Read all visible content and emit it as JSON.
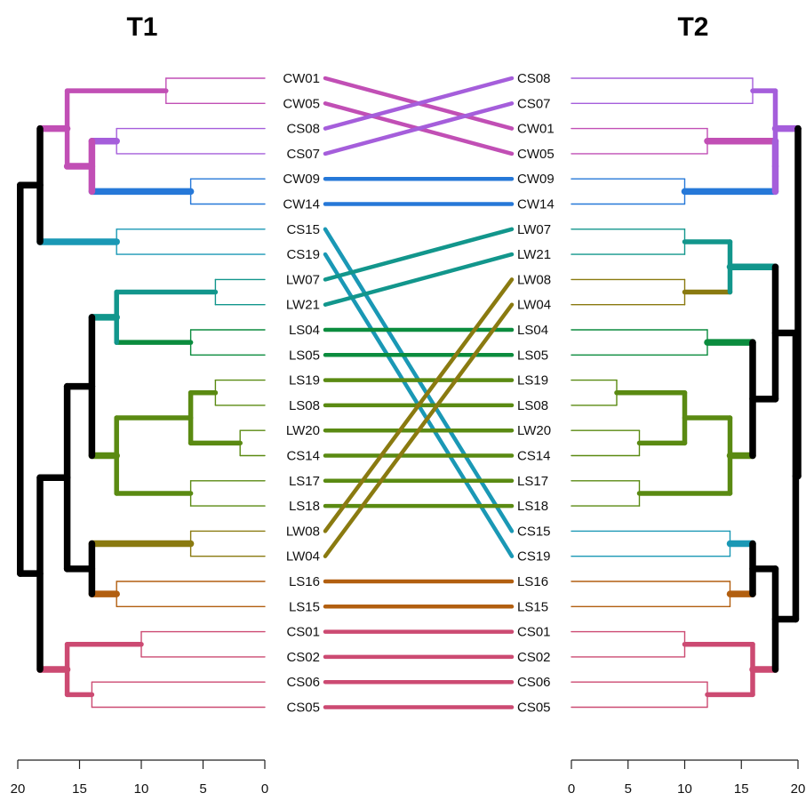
{
  "chart_data": {
    "type": "tanglegram",
    "titles": {
      "left": "T1",
      "right": "T2"
    },
    "axis": {
      "left": {
        "ticks": [
          20,
          15,
          10,
          5,
          0
        ],
        "range": [
          20,
          0
        ]
      },
      "right": {
        "ticks": [
          0,
          5,
          10,
          15,
          20
        ],
        "range": [
          0,
          20
        ]
      }
    },
    "left_leaves": [
      "CW01",
      "CW05",
      "CS08",
      "CS07",
      "CW09",
      "CW14",
      "CS15",
      "CS19",
      "LW07",
      "LW21",
      "LS04",
      "LS05",
      "LS19",
      "LS08",
      "LW20",
      "CS14",
      "LS17",
      "LS18",
      "LW08",
      "LW04",
      "LS16",
      "LS15",
      "CS01",
      "CS02",
      "CS06",
      "CS05"
    ],
    "right_leaves": [
      "CS08",
      "CS07",
      "CW01",
      "CW05",
      "CW09",
      "CW14",
      "LW07",
      "LW21",
      "LW08",
      "LW04",
      "LS04",
      "LS05",
      "LS19",
      "LS08",
      "LW20",
      "CS14",
      "LS17",
      "LS18",
      "CS15",
      "CS19",
      "LS16",
      "LS15",
      "CS01",
      "CS02",
      "CS06",
      "CS05"
    ],
    "connection_colors": {
      "CW01": "#C14FB5",
      "CW05": "#C14FB5",
      "CS08": "#A55EDB",
      "CS07": "#A55EDB",
      "CW09": "#2678D8",
      "CW14": "#2678D8",
      "CS15": "#1A98B5",
      "CS19": "#1A98B5",
      "LW07": "#12968C",
      "LW21": "#12968C",
      "LS04": "#0B8C3E",
      "LS05": "#0B8C3E",
      "LS19": "#5A8A12",
      "LS08": "#5A8A12",
      "LW20": "#5A8A12",
      "CS14": "#5A8A12",
      "LS17": "#5A8A12",
      "LS18": "#5A8A12",
      "LW08": "#8A7A10",
      "LW04": "#8A7A10",
      "LS16": "#B25F10",
      "LS15": "#B25F10",
      "CS01": "#CC4A72",
      "CS02": "#CC4A72",
      "CS06": "#CC4A72",
      "CS05": "#CC4A72"
    },
    "trees": {
      "left": {
        "h": 19.8,
        "children": [
          {
            "h": 18.2,
            "children": [
              {
                "h": 16,
                "color": "#C14FB5",
                "children": [
                  {
                    "h": 8,
                    "color": "#C14FB5",
                    "children": [
                      {
                        "leaf": "CW01"
                      },
                      {
                        "leaf": "CW05"
                      }
                    ]
                  },
                  {
                    "h": 14,
                    "children": [
                      {
                        "h": 12,
                        "color": "#A55EDB",
                        "children": [
                          {
                            "leaf": "CS08"
                          },
                          {
                            "leaf": "CS07"
                          }
                        ]
                      },
                      {
                        "h": 6,
                        "color": "#2678D8",
                        "children": [
                          {
                            "leaf": "CW09"
                          },
                          {
                            "leaf": "CW14"
                          }
                        ]
                      }
                    ]
                  }
                ]
              },
              {
                "h": 12,
                "color": "#1A98B5",
                "children": [
                  {
                    "leaf": "CS15"
                  },
                  {
                    "leaf": "CS19"
                  }
                ]
              }
            ]
          },
          {
            "h": 18.2,
            "children": [
              {
                "h": 16,
                "children": [
                  {
                    "h": 14,
                    "children": [
                      {
                        "h": 12,
                        "color": "#12968C",
                        "children": [
                          {
                            "h": 4,
                            "color": "#12968C",
                            "children": [
                              {
                                "leaf": "LW07"
                              },
                              {
                                "leaf": "LW21"
                              }
                            ]
                          },
                          {
                            "h": 6,
                            "color": "#0B8C3E",
                            "children": [
                              {
                                "leaf": "LS04"
                              },
                              {
                                "leaf": "LS05"
                              }
                            ]
                          }
                        ]
                      },
                      {
                        "h": 12,
                        "color": "#5A8A12",
                        "children": [
                          {
                            "h": 6,
                            "color": "#5A8A12",
                            "children": [
                              {
                                "h": 4,
                                "color": "#5A8A12",
                                "children": [
                                  {
                                    "leaf": "LS19"
                                  },
                                  {
                                    "leaf": "LS08"
                                  }
                                ]
                              },
                              {
                                "h": 2,
                                "color": "#5A8A12",
                                "children": [
                                  {
                                    "leaf": "LW20"
                                  },
                                  {
                                    "leaf": "CS14"
                                  }
                                ]
                              }
                            ]
                          },
                          {
                            "h": 6,
                            "color": "#5A8A12",
                            "children": [
                              {
                                "leaf": "LS17"
                              },
                              {
                                "leaf": "LS18"
                              }
                            ]
                          }
                        ]
                      }
                    ]
                  },
                  {
                    "h": 14,
                    "children": [
                      {
                        "h": 6,
                        "color": "#8A7A10",
                        "children": [
                          {
                            "leaf": "LW08"
                          },
                          {
                            "leaf": "LW04"
                          }
                        ]
                      },
                      {
                        "h": 12,
                        "color": "#B25F10",
                        "children": [
                          {
                            "leaf": "LS16"
                          },
                          {
                            "leaf": "LS15"
                          }
                        ]
                      }
                    ]
                  }
                ]
              },
              {
                "h": 16,
                "color": "#CC4A72",
                "children": [
                  {
                    "h": 10,
                    "color": "#CC4A72",
                    "children": [
                      {
                        "leaf": "CS01"
                      },
                      {
                        "leaf": "CS02"
                      }
                    ]
                  },
                  {
                    "h": 14,
                    "color": "#CC4A72",
                    "children": [
                      {
                        "leaf": "CS06"
                      },
                      {
                        "leaf": "CS05"
                      }
                    ]
                  }
                ]
              }
            ]
          }
        ]
      },
      "right": {
        "h": 20,
        "children": [
          {
            "h": 20,
            "children": [
              {
                "h": 18,
                "color": "#A55EDB",
                "children": [
                  {
                    "h": 16,
                    "color": "#A55EDB",
                    "children": [
                      {
                        "leaf": "CS08"
                      },
                      {
                        "leaf": "CS07"
                      }
                    ]
                  },
                  {
                    "h": 18,
                    "children": [
                      {
                        "h": 12,
                        "color": "#C14FB5",
                        "children": [
                          {
                            "leaf": "CW01"
                          },
                          {
                            "leaf": "CW05"
                          }
                        ]
                      },
                      {
                        "h": 10,
                        "color": "#2678D8",
                        "children": [
                          {
                            "leaf": "CW09"
                          },
                          {
                            "leaf": "CW14"
                          }
                        ]
                      }
                    ]
                  }
                ]
              }
            ]
          },
          {
            "h": 19.8,
            "children": [
              {
                "h": 18,
                "children": [
                  {
                    "h": 14,
                    "color": "#12968C",
                    "children": [
                      {
                        "h": 10,
                        "color": "#12968C",
                        "children": [
                          {
                            "leaf": "LW07"
                          },
                          {
                            "leaf": "LW21"
                          }
                        ]
                      },
                      {
                        "h": 10,
                        "color": "#8A7A10",
                        "children": [
                          {
                            "leaf": "LW08"
                          },
                          {
                            "leaf": "LW04"
                          }
                        ]
                      }
                    ]
                  },
                  {
                    "h": 16,
                    "children": [
                      {
                        "h": 12,
                        "color": "#0B8C3E",
                        "children": [
                          {
                            "leaf": "LS04"
                          },
                          {
                            "leaf": "LS05"
                          }
                        ]
                      },
                      {
                        "h": 14,
                        "color": "#5A8A12",
                        "children": [
                          {
                            "h": 10,
                            "color": "#5A8A12",
                            "children": [
                              {
                                "h": 4,
                                "color": "#5A8A12",
                                "children": [
                                  {
                                    "leaf": "LS19"
                                  },
                                  {
                                    "leaf": "LS08"
                                  }
                                ]
                              },
                              {
                                "h": 6,
                                "color": "#5A8A12",
                                "children": [
                                  {
                                    "leaf": "LW20"
                                  },
                                  {
                                    "leaf": "CS14"
                                  }
                                ]
                              }
                            ]
                          },
                          {
                            "h": 6,
                            "color": "#5A8A12",
                            "children": [
                              {
                                "leaf": "LS17"
                              },
                              {
                                "leaf": "LS18"
                              }
                            ]
                          }
                        ]
                      }
                    ]
                  }
                ]
              },
              {
                "h": 18,
                "children": [
                  {
                    "h": 16,
                    "children": [
                      {
                        "h": 14,
                        "color": "#1A98B5",
                        "children": [
                          {
                            "leaf": "CS15"
                          },
                          {
                            "leaf": "CS19"
                          }
                        ]
                      },
                      {
                        "h": 14,
                        "color": "#B25F10",
                        "children": [
                          {
                            "leaf": "LS16"
                          },
                          {
                            "leaf": "LS15"
                          }
                        ]
                      }
                    ]
                  },
                  {
                    "h": 16,
                    "color": "#CC4A72",
                    "children": [
                      {
                        "h": 10,
                        "color": "#CC4A72",
                        "children": [
                          {
                            "leaf": "CS01"
                          },
                          {
                            "leaf": "CS02"
                          }
                        ]
                      },
                      {
                        "h": 12,
                        "color": "#CC4A72",
                        "children": [
                          {
                            "leaf": "CS06"
                          },
                          {
                            "leaf": "CS05"
                          }
                        ]
                      }
                    ]
                  }
                ]
              }
            ]
          }
        ]
      }
    }
  }
}
